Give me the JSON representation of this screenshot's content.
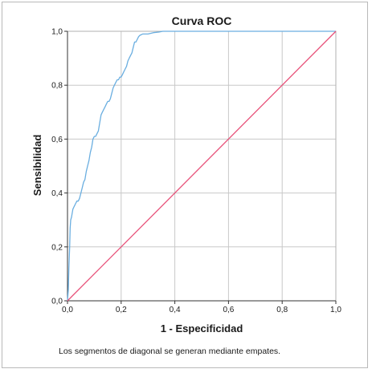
{
  "chart_data": {
    "type": "line",
    "title": "Curva ROC",
    "xlabel": "1 - Especificidad",
    "ylabel": "Sensibilidad",
    "xlim": [
      0,
      1
    ],
    "ylim": [
      0,
      1
    ],
    "xticks": [
      "0,0",
      "0,2",
      "0,4",
      "0,6",
      "0,8",
      "1,0"
    ],
    "yticks": [
      "0,0",
      "0,2",
      "0,4",
      "0,6",
      "0,8",
      "1,0"
    ],
    "grid": true,
    "footnote": "Los segmentos de diagonal se generan mediante empates.",
    "series": [
      {
        "color": "#6aaee0",
        "x": [
          0,
          0.003,
          0.005,
          0.008,
          0.01,
          0.012,
          0.015,
          0.02,
          0.025,
          0.03,
          0.035,
          0.04,
          0.045,
          0.05,
          0.055,
          0.06,
          0.065,
          0.07,
          0.075,
          0.08,
          0.085,
          0.09,
          0.095,
          0.1,
          0.105,
          0.11,
          0.115,
          0.12,
          0.125,
          0.13,
          0.135,
          0.14,
          0.145,
          0.15,
          0.155,
          0.16,
          0.165,
          0.17,
          0.175,
          0.18,
          0.185,
          0.19,
          0.195,
          0.2,
          0.205,
          0.21,
          0.215,
          0.22,
          0.225,
          0.23,
          0.235,
          0.24,
          0.245,
          0.25,
          0.255,
          0.26,
          0.265,
          0.27,
          0.28,
          0.3,
          0.32,
          0.34,
          0.355,
          0.4,
          0.5,
          0.6,
          0.7,
          0.8,
          0.9,
          1.0
        ],
        "y": [
          0,
          0.04,
          0.12,
          0.2,
          0.27,
          0.3,
          0.31,
          0.34,
          0.35,
          0.36,
          0.37,
          0.37,
          0.38,
          0.4,
          0.42,
          0.44,
          0.45,
          0.48,
          0.5,
          0.52,
          0.55,
          0.57,
          0.6,
          0.61,
          0.61,
          0.62,
          0.63,
          0.66,
          0.69,
          0.7,
          0.71,
          0.72,
          0.73,
          0.74,
          0.74,
          0.75,
          0.77,
          0.79,
          0.8,
          0.81,
          0.82,
          0.82,
          0.83,
          0.83,
          0.84,
          0.85,
          0.86,
          0.87,
          0.89,
          0.9,
          0.91,
          0.92,
          0.94,
          0.96,
          0.96,
          0.97,
          0.98,
          0.985,
          0.99,
          0.99,
          0.995,
          0.997,
          1.0,
          1.0,
          1.0,
          1.0,
          1.0,
          1.0,
          1.0,
          1.0
        ]
      },
      {
        "color": "#e8527a",
        "x": [
          0,
          1
        ],
        "y": [
          0,
          1
        ]
      }
    ]
  }
}
